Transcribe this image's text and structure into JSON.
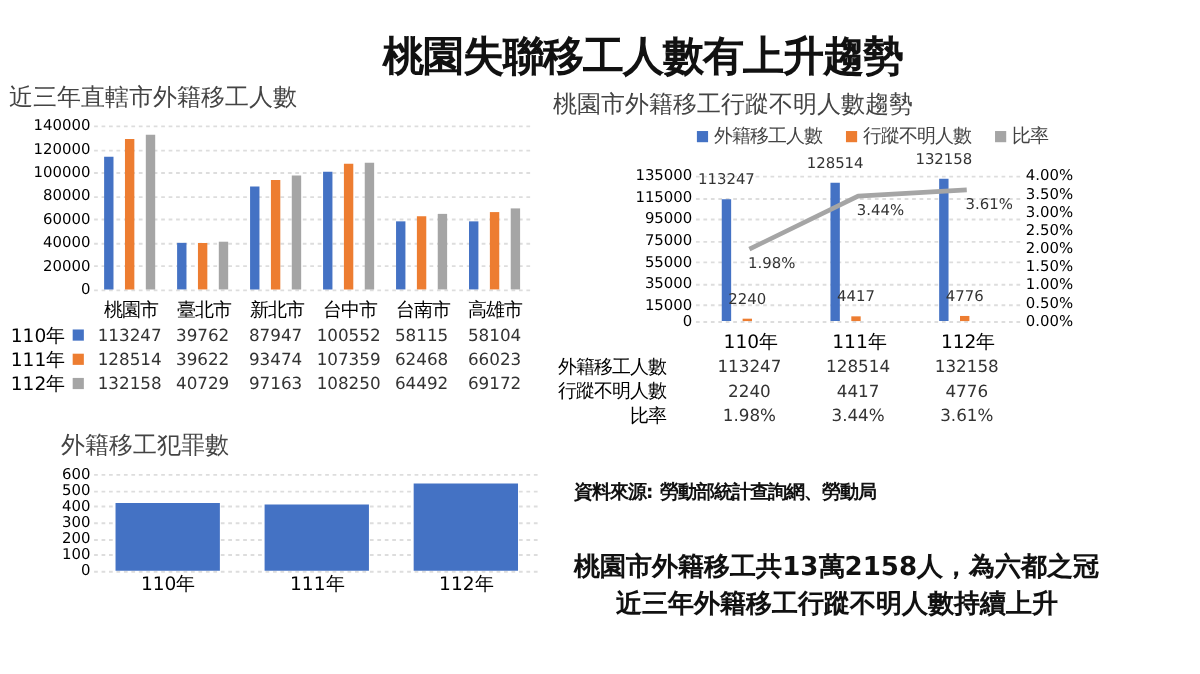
{
  "chart_data": [
    {
      "type": "bar",
      "title": "近三年直轄市外籍移工人數",
      "categories": [
        "桃園市",
        "臺北市",
        "新北市",
        "台中市",
        "台南市",
        "高雄市"
      ],
      "series": [
        {
          "name": "110年",
          "color": "#4472c4",
          "values": [
            113247,
            39762,
            87947,
            100552,
            58115,
            58104
          ]
        },
        {
          "name": "111年",
          "color": "#ed7d31",
          "values": [
            128514,
            39622,
            93474,
            107359,
            62468,
            66023
          ]
        },
        {
          "name": "112年",
          "color": "#a5a5a5",
          "values": [
            132158,
            40729,
            97163,
            108250,
            64492,
            69172
          ]
        }
      ],
      "ylim": [
        0,
        140000
      ],
      "yticks": [
        0,
        20000,
        40000,
        60000,
        80000,
        100000,
        120000,
        140000
      ],
      "grid": "y",
      "legend": "bottom",
      "data_labels": true
    },
    {
      "type": "bar",
      "title": "桃園市外籍移工行蹤不明人數趨勢",
      "categories": [
        "110年",
        "111年",
        "112年"
      ],
      "series": [
        {
          "name": "外籍移工人數",
          "type": "bar",
          "color": "#4472c4",
          "values": [
            113247,
            128514,
            132158
          ],
          "value_labels": [
            "113247",
            "128514",
            "132158"
          ]
        },
        {
          "name": "行蹤不明人數",
          "type": "bar",
          "color": "#ed7d31",
          "values": [
            2240,
            4417,
            4776
          ],
          "value_labels": [
            "2240",
            "4417",
            "4776"
          ]
        },
        {
          "name": "比率",
          "type": "line",
          "axis": "y2",
          "color": "#a5a5a5",
          "values": [
            1.98,
            3.44,
            3.61
          ],
          "value_labels": [
            "1.98%",
            "3.44%",
            "3.61%"
          ]
        }
      ],
      "ylim": [
        0,
        135000
      ],
      "yticks": [
        0,
        15000,
        35000,
        55000,
        75000,
        95000,
        115000,
        135000
      ],
      "y2lim": [
        0,
        4
      ],
      "y2ticks": [
        {
          "value": 0,
          "label": "0.00%"
        },
        {
          "value": 0.5,
          "label": "0.50%"
        },
        {
          "value": 1,
          "label": "1.00%"
        },
        {
          "value": 1.5,
          "label": "1.50%"
        },
        {
          "value": 2,
          "label": "2.00%"
        },
        {
          "value": 2.5,
          "label": "2.50%"
        },
        {
          "value": 3,
          "label": "3.00%"
        },
        {
          "value": 3.5,
          "label": "3.50%"
        },
        {
          "value": 4,
          "label": "4.00%"
        }
      ],
      "grid": "y",
      "legend": "top",
      "data_labels": true
    },
    {
      "type": "bar",
      "title": "外籍移工犯罪數",
      "categories": [
        "110年",
        "111年",
        "112年"
      ],
      "values": [
        420,
        410,
        540
      ],
      "color": "#4472c4",
      "ylim": [
        0,
        600
      ],
      "yticks": [
        0,
        100,
        200,
        300,
        400,
        500,
        600
      ],
      "grid": "y"
    },
    {
      "type": "other",
      "title": "桃園失聯移工人數有上升趨勢",
      "annotations": [
        "資料來源: 勞動部統計查詢網、勞動局",
        "桃園市外籍移工共13萬2158人，為六都之冠",
        "近三年外籍移工行蹤不明人數持續上升"
      ]
    }
  ]
}
